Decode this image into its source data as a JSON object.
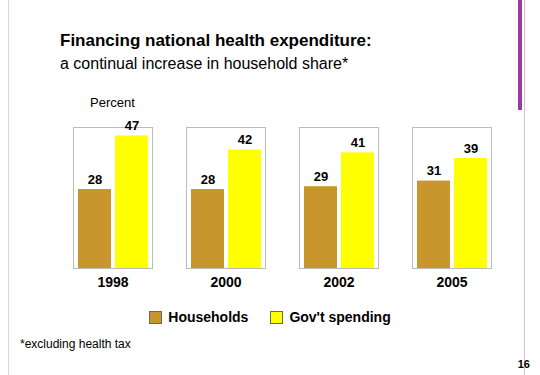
{
  "chart_data": {
    "type": "bar",
    "title": "Financing national health expenditure:",
    "subtitle": "a continual increase in household share*",
    "y_label": "Percent",
    "categories": [
      "1998",
      "2000",
      "2002",
      "2005"
    ],
    "series": [
      {
        "name": "Households",
        "color": "#c8962d",
        "values": [
          28,
          28,
          29,
          31
        ]
      },
      {
        "name": "Gov't spending",
        "color": "#ffff00",
        "values": [
          47,
          42,
          41,
          39
        ]
      }
    ],
    "ylim": [
      0,
      50
    ],
    "tick_labels": "x",
    "grid": false,
    "data_labels": true,
    "legend": "bottom",
    "footnote": "*excluding health tax",
    "page_number": "16"
  }
}
